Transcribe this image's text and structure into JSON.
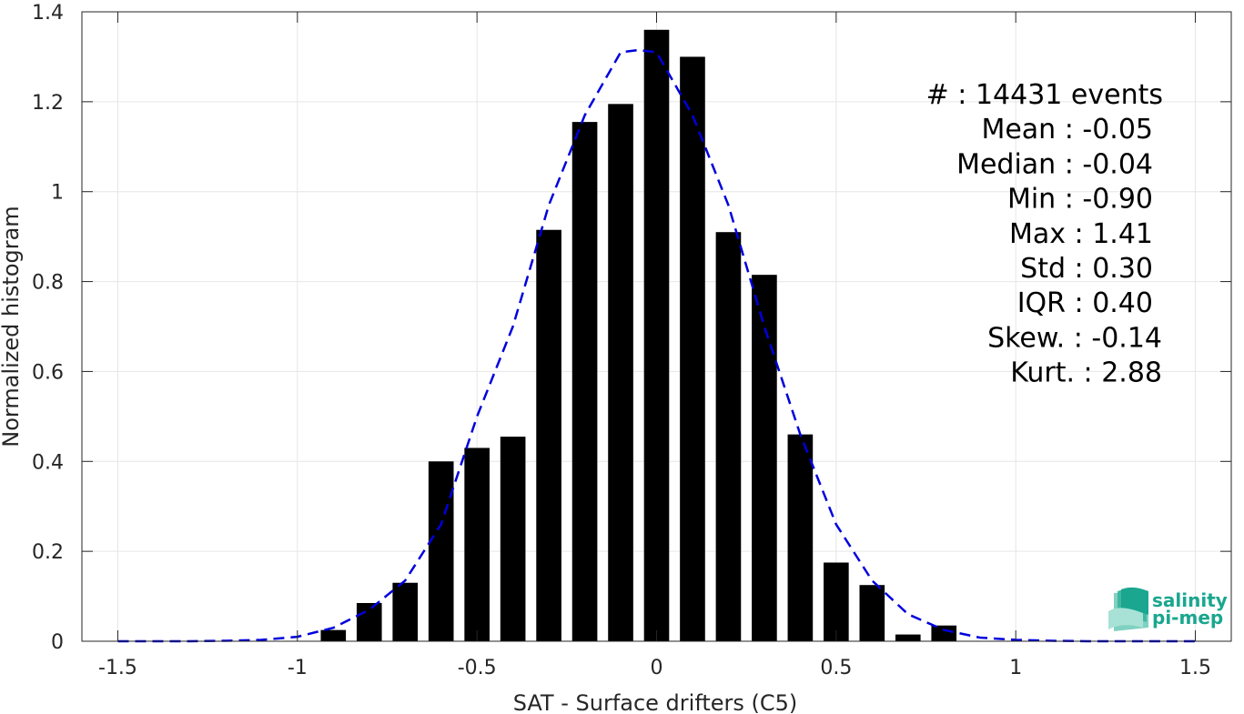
{
  "chart_data": {
    "type": "bar",
    "xlabel": "SAT - Surface drifters (C5)",
    "ylabel": "Normalized histogram",
    "xlim": [
      -1.6,
      1.6
    ],
    "ylim": [
      0,
      1.4
    ],
    "xticks": [
      -1.5,
      -1,
      -0.5,
      0,
      0.5,
      1,
      1.5
    ],
    "xtick_labels": [
      "-1.5",
      "-1",
      "-0.5",
      "0",
      "0.5",
      "1",
      "1.5"
    ],
    "yticks": [
      0,
      0.2,
      0.4,
      0.6,
      0.8,
      1,
      1.2,
      1.4
    ],
    "ytick_labels": [
      "0",
      "0.2",
      "0.4",
      "0.6",
      "0.8",
      "1",
      "1.2",
      "1.4"
    ],
    "grid": true,
    "bar_width": 0.07,
    "bar_color": "#000000",
    "bars": {
      "x": [
        -0.9,
        -0.8,
        -0.7,
        -0.6,
        -0.5,
        -0.4,
        -0.3,
        -0.2,
        -0.1,
        0.0,
        0.1,
        0.2,
        0.3,
        0.4,
        0.5,
        0.6,
        0.7,
        0.8
      ],
      "values": [
        0.025,
        0.085,
        0.13,
        0.4,
        0.43,
        0.455,
        0.915,
        1.155,
        1.195,
        1.36,
        1.3,
        0.91,
        0.815,
        0.46,
        0.175,
        0.125,
        0.015,
        0.035
      ]
    },
    "fit_curve": {
      "style": "dashed",
      "color": "#0000dd",
      "x": [
        -1.5,
        -1.4,
        -1.3,
        -1.2,
        -1.1,
        -1.0,
        -0.9,
        -0.8,
        -0.7,
        -0.6,
        -0.5,
        -0.4,
        -0.3,
        -0.2,
        -0.1,
        -0.05,
        0.0,
        0.1,
        0.2,
        0.3,
        0.4,
        0.5,
        0.6,
        0.7,
        0.8,
        0.9,
        1.0,
        1.1,
        1.2,
        1.3,
        1.4,
        1.5
      ],
      "values": [
        0.0,
        0.0,
        0.0,
        0.001,
        0.003,
        0.01,
        0.03,
        0.07,
        0.135,
        0.26,
        0.5,
        0.7,
        0.97,
        1.17,
        1.31,
        1.315,
        1.31,
        1.17,
        0.97,
        0.7,
        0.46,
        0.26,
        0.135,
        0.06,
        0.025,
        0.008,
        0.003,
        0.001,
        0.0,
        0.0,
        0.0,
        0.0
      ]
    },
    "annotations": [
      "#  : 14431 events",
      "Mean : -0.05",
      "Median : -0.04",
      "Min : -0.90",
      "Max : 1.41",
      "Std : 0.30",
      "IQR : 0.40",
      "Skew. : -0.14",
      "Kurt. : 2.88"
    ]
  },
  "logo": {
    "line1": "salinity",
    "line2": "pi-mep",
    "color": "#1aa68f"
  }
}
